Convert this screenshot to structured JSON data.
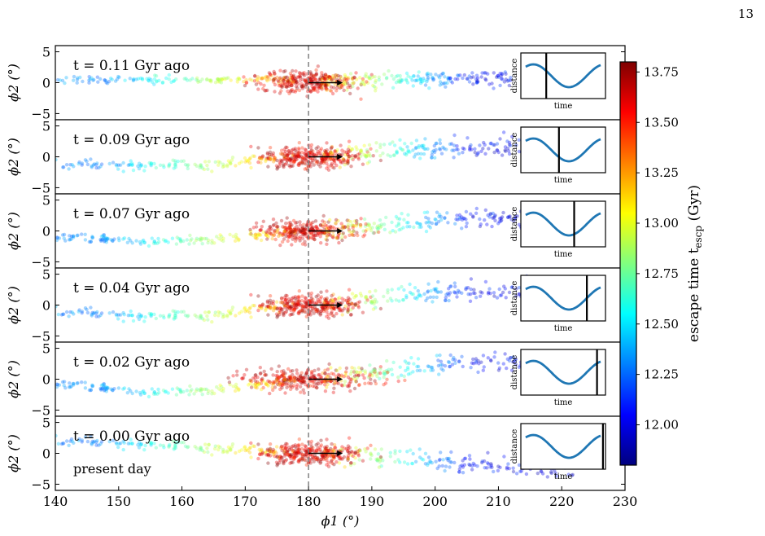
{
  "page_number": "13",
  "chart_data": {
    "type": "scatter",
    "description_axis": {
      "xlabel": "ϕ1 (°)",
      "ylabel": "ϕ2 (°)",
      "xlim": [
        140,
        230
      ],
      "xticks": [
        "140",
        "150",
        "160",
        "170",
        "180",
        "190",
        "200",
        "210",
        "220",
        "230"
      ],
      "ylim": [
        -6,
        6
      ],
      "yticks": [
        "5",
        "0",
        "−5"
      ],
      "vline_x": 180
    },
    "colorbar": {
      "label": "escape time t",
      "label_sub": "escp",
      "label_unit": " (Gyr)",
      "range": [
        11.8,
        13.8
      ],
      "ticks": [
        "13.75",
        "13.50",
        "13.25",
        "13.00",
        "12.75",
        "12.50",
        "12.25",
        "12.00"
      ],
      "tick_values": [
        13.75,
        13.5,
        13.25,
        13.0,
        12.75,
        12.5,
        12.25,
        12.0
      ],
      "colors": [
        "#00007f",
        "#0000ff",
        "#0080ff",
        "#00ffff",
        "#80ff80",
        "#ffff00",
        "#ff8000",
        "#ff0000",
        "#7f0000"
      ]
    },
    "inset": {
      "xlabel": "time",
      "ylabel": "distance",
      "curve_color": "#1f77b4"
    },
    "panels": [
      {
        "label": "t = 0.11 Gyr ago",
        "marker_frac": 0.3,
        "extra": ""
      },
      {
        "label": "t = 0.09 Gyr ago",
        "marker_frac": 0.45,
        "extra": ""
      },
      {
        "label": "t = 0.07 Gyr ago",
        "marker_frac": 0.63,
        "extra": ""
      },
      {
        "label": "t = 0.04 Gyr ago",
        "marker_frac": 0.78,
        "extra": ""
      },
      {
        "label": "t = 0.02 Gyr ago",
        "marker_frac": 0.9,
        "extra": ""
      },
      {
        "label": "t = 0.00 Gyr ago",
        "marker_frac": 0.97,
        "extra": "present day"
      }
    ]
  }
}
